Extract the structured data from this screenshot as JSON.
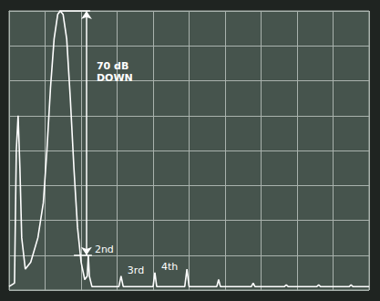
{
  "chart_data": {
    "type": "line",
    "xlim": [
      0,
      10
    ],
    "xticks": [
      0,
      1,
      2,
      3,
      4,
      5,
      6,
      7,
      8,
      9,
      10
    ],
    "ylim": [
      -80,
      0
    ],
    "yticks": [
      -80,
      -70,
      -60,
      -50,
      -40,
      -30,
      -20,
      -10,
      0
    ],
    "grid": true,
    "tick_labels": false,
    "color": "#ffffff",
    "x": [
      0.0,
      0.15,
      0.2,
      0.25,
      0.3,
      0.35,
      0.45,
      0.6,
      0.8,
      0.95,
      1.05,
      1.15,
      1.25,
      1.35,
      1.42,
      1.5,
      1.6,
      1.7,
      1.8,
      1.9,
      2.0,
      2.1,
      2.17,
      2.2,
      2.23,
      2.3,
      3.05,
      3.11,
      3.17,
      4.0,
      4.05,
      4.1,
      4.88,
      4.94,
      5.0,
      5.77,
      5.82,
      5.87,
      6.73,
      6.78,
      6.83,
      7.65,
      7.7,
      7.75,
      8.55,
      8.6,
      8.65,
      9.45,
      9.5,
      9.55,
      10.0
    ],
    "values": [
      -79,
      -78,
      -40,
      -30,
      -45,
      -65,
      -74,
      -72,
      -65,
      -55,
      -40,
      -22,
      -8,
      -1,
      0,
      -1,
      -8,
      -25,
      -45,
      -62,
      -72,
      -77,
      -76,
      -70,
      -76,
      -79,
      -79,
      -76,
      -79,
      -79,
      -75,
      -79,
      -79,
      -74,
      -79,
      -79,
      -77,
      -79,
      -79,
      -78,
      -79,
      -79,
      -78.5,
      -79,
      -79,
      -78.5,
      -79,
      -79,
      -78.5,
      -79,
      -79
    ],
    "harmonics": {
      "labels": [
        "2nd",
        "3rd",
        "4th"
      ],
      "x": [
        2.2,
        3.11,
        4.05
      ],
      "y": [
        -70,
        -76,
        -75
      ]
    },
    "annotation": {
      "text": "70 dB\nDOWN",
      "x": 2.15,
      "from": 0,
      "to": -70
    }
  }
}
